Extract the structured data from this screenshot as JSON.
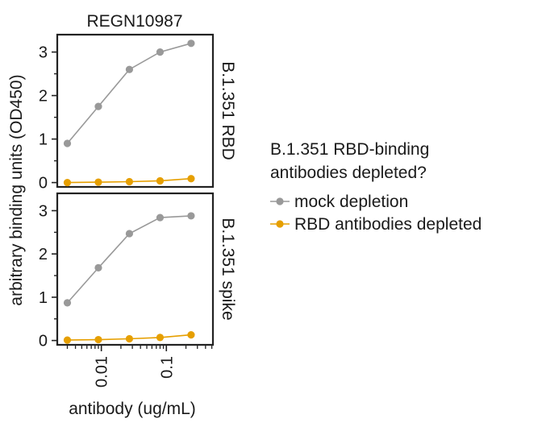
{
  "chart_data": {
    "type": "line",
    "title": "REGN10987",
    "xlabel": "antibody (ug/mL)",
    "ylabel": "arbitrary binding units (OD450)",
    "x_scale": "log",
    "xlim": [
      0.0021,
      0.52
    ],
    "x_tick_labels": [
      "0.01",
      "0.1"
    ],
    "x_ticks": [
      0.01,
      0.1
    ],
    "ylim": [
      -0.1,
      3.4
    ],
    "y_tick_labels": [
      "0",
      "1",
      "2",
      "3"
    ],
    "y_ticks": [
      0,
      1,
      2,
      3
    ],
    "legend": {
      "title_lines": [
        "B.1.351 RBD-binding",
        "antibodies depleted?"
      ],
      "placement": "right"
    },
    "series_style": {
      "mock depletion": "#999999",
      "RBD antibodies depleted": "#E69F00"
    },
    "panels": [
      {
        "label": "B.1.351 RBD",
        "x": [
          0.003,
          0.009,
          0.027,
          0.08,
          0.24
        ],
        "series": [
          {
            "name": "mock depletion",
            "values": [
              0.9,
              1.75,
              2.6,
              3.0,
              3.2
            ]
          },
          {
            "name": "RBD antibodies depleted",
            "values": [
              0.0,
              0.01,
              0.02,
              0.04,
              0.09
            ]
          }
        ]
      },
      {
        "label": "B.1.351 spike",
        "x": [
          0.003,
          0.009,
          0.027,
          0.08,
          0.24
        ],
        "series": [
          {
            "name": "mock depletion",
            "values": [
              0.87,
              1.68,
              2.47,
              2.84,
              2.88
            ]
          },
          {
            "name": "RBD antibodies depleted",
            "values": [
              0.01,
              0.02,
              0.04,
              0.07,
              0.13
            ]
          }
        ]
      }
    ]
  }
}
